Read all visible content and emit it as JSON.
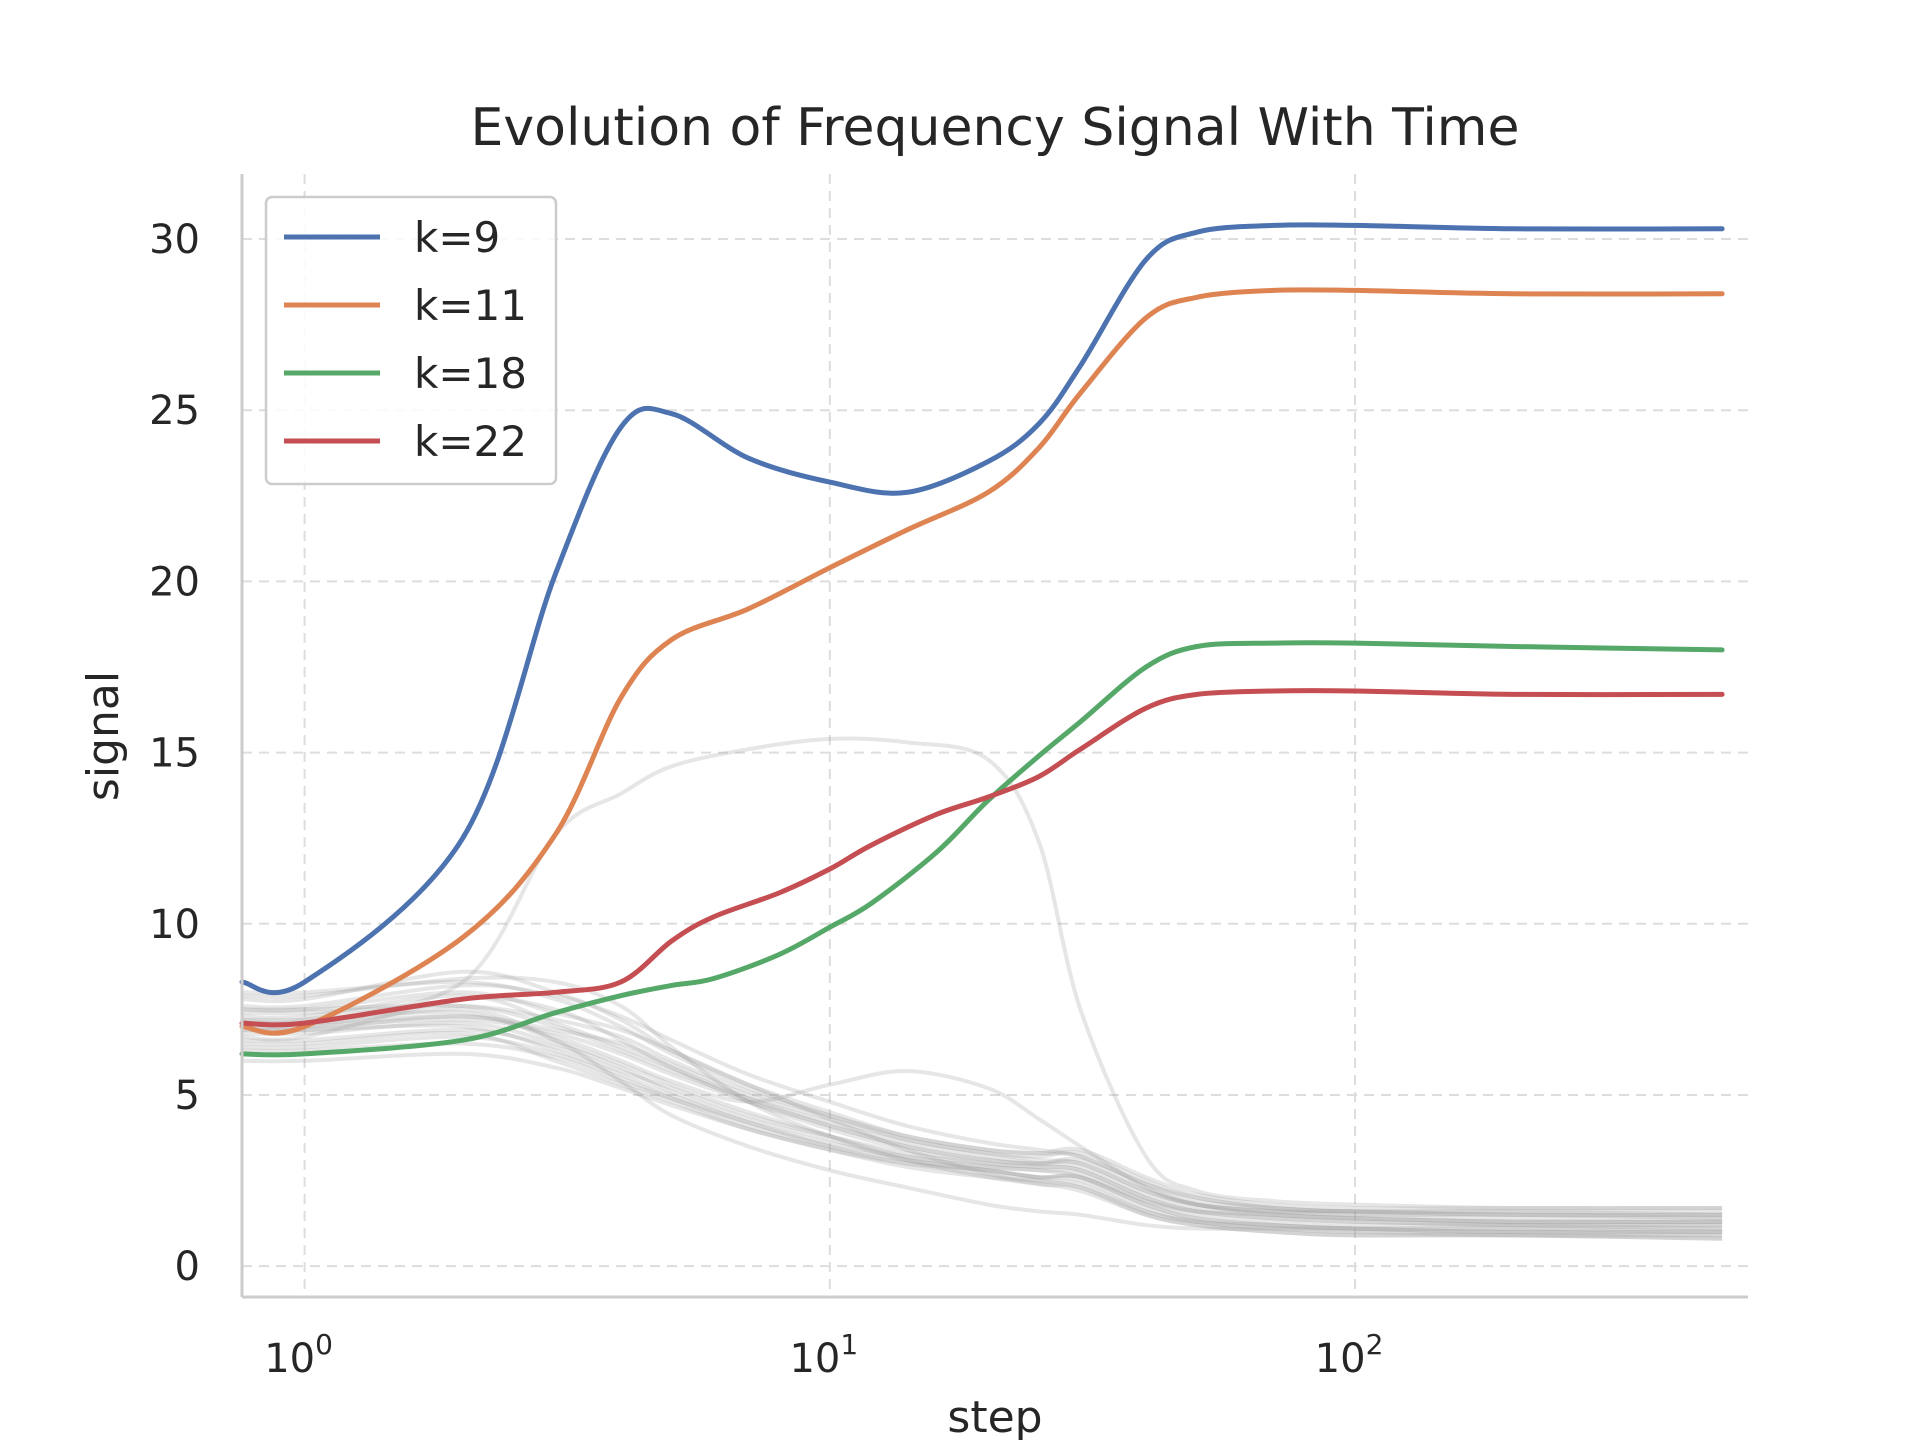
{
  "chart_data": {
    "type": "line",
    "title": "Evolution of Frequency Signal With Time",
    "xlabel": "step",
    "ylabel": "signal",
    "xscale": "log",
    "xlim": [
      0.76,
      560
    ],
    "ylim": [
      -0.9,
      31.9
    ],
    "yticks": [
      0,
      5,
      10,
      15,
      20,
      25,
      30
    ],
    "xticks": [
      {
        "value": 1,
        "base": "10",
        "exp": "0"
      },
      {
        "value": 10,
        "base": "10",
        "exp": "1"
      },
      {
        "value": 100,
        "base": "10",
        "exp": "2"
      }
    ],
    "grid": true,
    "legend_position": "top-left",
    "series": [
      {
        "name": "k=9",
        "color": "#4c72b0",
        "x": [
          0.76,
          1,
          2,
          3,
          4,
          5,
          7,
          10,
          14,
          20,
          25,
          30,
          40,
          50,
          70,
          100,
          200,
          500
        ],
        "y": [
          8.3,
          8.3,
          12.5,
          20.2,
          24.5,
          24.9,
          23.6,
          22.9,
          22.6,
          23.5,
          24.6,
          26.3,
          29.4,
          30.2,
          30.4,
          30.4,
          30.3,
          30.3
        ]
      },
      {
        "name": "k=11",
        "color": "#dd8452",
        "x": [
          0.76,
          1,
          2,
          3,
          4,
          5,
          7,
          10,
          14,
          20,
          25,
          30,
          40,
          50,
          70,
          100,
          200,
          500
        ],
        "y": [
          7.0,
          7.0,
          9.6,
          12.6,
          16.6,
          18.3,
          19.2,
          20.4,
          21.5,
          22.6,
          23.9,
          25.5,
          27.7,
          28.3,
          28.5,
          28.5,
          28.4,
          28.4
        ]
      },
      {
        "name": "k=18",
        "color": "#55a868",
        "x": [
          0.76,
          1,
          2,
          3,
          4,
          5,
          6,
          8,
          10,
          12,
          16,
          20,
          25,
          30,
          40,
          50,
          70,
          100,
          200,
          500
        ],
        "y": [
          6.2,
          6.2,
          6.6,
          7.4,
          7.9,
          8.2,
          8.4,
          9.1,
          9.9,
          10.6,
          12.1,
          13.6,
          14.9,
          15.9,
          17.5,
          18.1,
          18.2,
          18.2,
          18.1,
          18.0
        ]
      },
      {
        "name": "k=22",
        "color": "#c44e52",
        "x": [
          0.76,
          1,
          2,
          3,
          4,
          5,
          6,
          8,
          10,
          12,
          16,
          20,
          25,
          30,
          40,
          50,
          70,
          100,
          200,
          500
        ],
        "y": [
          7.1,
          7.1,
          7.8,
          8.0,
          8.3,
          9.5,
          10.2,
          10.9,
          11.6,
          12.3,
          13.2,
          13.7,
          14.3,
          15.1,
          16.3,
          16.7,
          16.8,
          16.8,
          16.7,
          16.7
        ]
      }
    ],
    "background_series": {
      "color": "#9a9a9a",
      "count": 22,
      "y": [
        [
          7.5,
          7.5,
          7.6,
          7.0,
          6.3,
          5.7,
          4.9,
          4.2,
          3.6,
          3.2,
          3.0,
          2.9,
          2.1,
          1.7,
          1.5,
          1.4,
          1.3,
          1.3
        ],
        [
          7.2,
          7.2,
          7.4,
          6.6,
          5.9,
          5.3,
          4.5,
          3.8,
          3.2,
          2.9,
          2.8,
          2.6,
          1.8,
          1.4,
          1.2,
          1.1,
          1.0,
          1.0
        ],
        [
          6.9,
          6.9,
          7.0,
          6.3,
          5.6,
          5.0,
          4.2,
          3.5,
          3.0,
          2.7,
          2.5,
          2.3,
          1.5,
          1.2,
          1.0,
          0.9,
          0.9,
          0.8
        ],
        [
          8.0,
          8.0,
          8.3,
          7.8,
          7.0,
          6.2,
          5.2,
          4.4,
          3.7,
          3.3,
          3.1,
          3.0,
          2.2,
          1.8,
          1.6,
          1.5,
          1.5,
          1.4
        ],
        [
          6.5,
          6.5,
          6.8,
          6.0,
          5.3,
          4.8,
          4.0,
          3.4,
          2.9,
          2.6,
          2.5,
          2.4,
          1.6,
          1.3,
          1.1,
          1.0,
          1.0,
          0.9
        ],
        [
          7.8,
          7.8,
          8.6,
          8.0,
          7.2,
          6.3,
          5.3,
          4.5,
          3.8,
          3.4,
          3.3,
          3.2,
          2.4,
          2.0,
          1.7,
          1.6,
          1.6,
          1.5
        ],
        [
          6.0,
          6.0,
          6.2,
          5.8,
          5.2,
          4.7,
          4.0,
          3.4,
          3.0,
          2.8,
          2.6,
          2.6,
          1.9,
          1.6,
          1.5,
          1.4,
          1.3,
          1.3
        ],
        [
          7.0,
          7.0,
          7.2,
          6.8,
          6.2,
          5.6,
          4.8,
          4.1,
          3.5,
          3.1,
          3.0,
          3.1,
          2.3,
          1.8,
          1.5,
          1.4,
          1.3,
          1.3
        ],
        [
          6.7,
          6.7,
          7.8,
          7.5,
          6.6,
          5.8,
          4.8,
          4.0,
          3.4,
          3.0,
          2.9,
          2.8,
          2.0,
          1.6,
          1.4,
          1.3,
          1.2,
          1.2
        ],
        [
          7.3,
          7.3,
          7.9,
          7.1,
          6.4,
          5.8,
          4.9,
          4.1,
          3.5,
          3.1,
          3.0,
          3.0,
          2.2,
          1.8,
          1.6,
          1.6,
          1.5,
          1.5
        ],
        [
          6.8,
          6.8,
          7.1,
          6.5,
          5.8,
          5.1,
          4.3,
          3.7,
          3.1,
          2.8,
          2.6,
          2.5,
          1.7,
          1.3,
          1.1,
          1.0,
          0.9,
          0.9
        ],
        [
          7.6,
          7.6,
          8.2,
          7.9,
          7.3,
          6.6,
          5.6,
          4.8,
          4.1,
          3.6,
          3.4,
          3.2,
          2.4,
          1.9,
          1.7,
          1.6,
          1.6,
          1.6
        ],
        [
          6.3,
          6.3,
          6.5,
          6.1,
          5.4,
          4.9,
          4.2,
          3.6,
          3.2,
          2.9,
          2.8,
          2.7,
          1.9,
          1.5,
          1.3,
          1.2,
          1.2,
          1.2
        ],
        [
          7.1,
          7.1,
          7.3,
          6.9,
          6.5,
          5.9,
          5.0,
          4.3,
          3.7,
          3.3,
          3.2,
          3.3,
          2.5,
          2.0,
          1.7,
          1.6,
          1.5,
          1.5
        ],
        [
          6.6,
          6.6,
          6.9,
          6.4,
          5.7,
          5.2,
          4.4,
          3.8,
          3.3,
          3.0,
          2.9,
          2.8,
          2.0,
          1.6,
          1.4,
          1.3,
          1.2,
          1.1
        ],
        [
          7.4,
          7.4,
          7.6,
          7.2,
          6.7,
          6.0,
          5.1,
          4.4,
          3.8,
          3.4,
          3.3,
          3.4,
          2.6,
          2.1,
          1.8,
          1.7,
          1.7,
          1.7
        ],
        [
          7.9,
          7.9,
          8.4,
          8.3,
          7.6,
          6.4,
          4.8,
          3.8,
          3.1,
          2.6,
          2.4,
          2.2,
          1.5,
          1.2,
          1.0,
          0.9,
          0.9,
          0.8
        ],
        [
          6.9,
          6.9,
          7.3,
          6.7,
          6.0,
          5.4,
          4.8,
          5.3,
          5.7,
          5.2,
          4.3,
          3.5,
          2.3,
          1.8,
          1.6,
          1.5,
          1.4,
          1.4
        ],
        [
          7.5,
          7.5,
          8.0,
          7.4,
          6.9,
          6.3,
          5.3,
          4.3,
          3.4,
          2.7,
          2.4,
          2.3,
          1.6,
          1.3,
          1.2,
          1.1,
          1.1,
          1.0
        ],
        [
          7.0,
          7.0,
          7.5,
          6.6,
          5.4,
          4.4,
          3.5,
          2.8,
          2.3,
          1.8,
          1.6,
          1.5,
          1.2,
          1.1,
          1.1,
          1.1,
          1.1,
          1.1
        ],
        [
          6.4,
          6.4,
          6.7,
          6.2,
          5.5,
          4.9,
          4.1,
          3.5,
          3.1,
          2.8,
          2.6,
          2.6,
          1.8,
          1.4,
          1.2,
          1.1,
          1.0,
          1.0
        ],
        [
          7.2,
          7.2,
          8.3,
          12.6,
          13.8,
          14.6,
          15.1,
          15.4,
          15.3,
          14.8,
          12.4,
          7.5,
          3.2,
          2.2,
          1.9,
          1.8,
          1.7,
          1.7
        ]
      ]
    }
  }
}
